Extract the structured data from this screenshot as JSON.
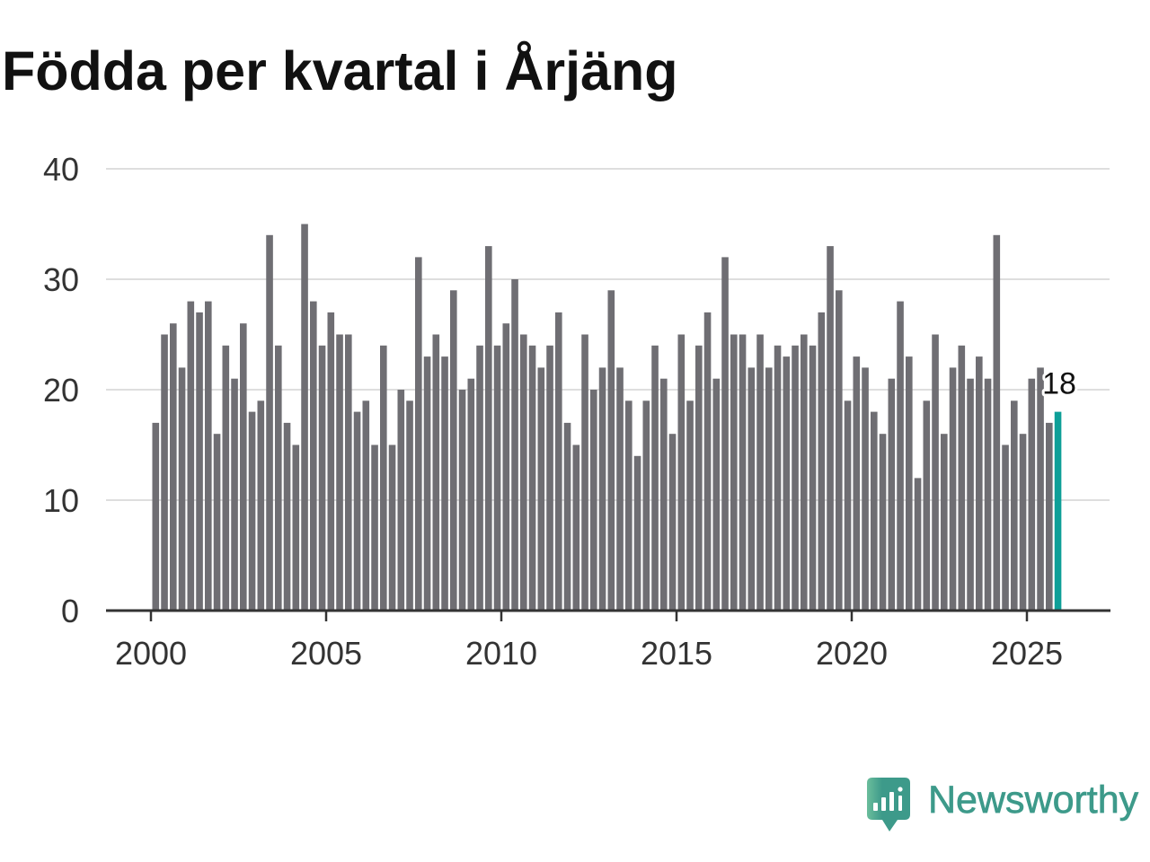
{
  "chart_data": {
    "type": "bar",
    "title": "Födda per kvartal i Årjäng",
    "xlabel": "",
    "ylabel": "",
    "period": "quarter",
    "start_year": 2000,
    "start_quarter": 1,
    "values": [
      17,
      25,
      26,
      22,
      28,
      27,
      28,
      16,
      24,
      21,
      26,
      18,
      19,
      34,
      24,
      17,
      15,
      35,
      28,
      24,
      27,
      25,
      25,
      18,
      19,
      15,
      24,
      15,
      20,
      19,
      32,
      23,
      25,
      23,
      29,
      20,
      21,
      24,
      33,
      24,
      26,
      30,
      25,
      24,
      22,
      24,
      27,
      17,
      15,
      25,
      20,
      22,
      29,
      22,
      19,
      14,
      19,
      24,
      21,
      16,
      25,
      19,
      24,
      27,
      21,
      32,
      25,
      25,
      22,
      25,
      22,
      24,
      23,
      24,
      25,
      24,
      27,
      33,
      29,
      19,
      23,
      22,
      18,
      16,
      21,
      28,
      23,
      12,
      19,
      25,
      16,
      22,
      24,
      21,
      23,
      21,
      34,
      15,
      19,
      16,
      21,
      22,
      17,
      18
    ],
    "ylim": [
      0,
      40
    ],
    "yticks": [
      0,
      10,
      20,
      30,
      40
    ],
    "xticks": [
      2000,
      2005,
      2010,
      2015,
      2020,
      2025
    ],
    "grid": true,
    "legend": "none",
    "highlight": {
      "index": 103,
      "value_label": "18"
    },
    "colors": {
      "bar": "#6f6e73",
      "highlight": "#0e9f98",
      "grid": "#dedede",
      "axis": "#333333",
      "text": "#333333",
      "title": "#111111"
    }
  },
  "brand": {
    "name": "Newsworthy",
    "icon": "newsworthy-chart-bubble-icon",
    "color": "#3d9a8a",
    "color_light": "#6bbd9c"
  }
}
